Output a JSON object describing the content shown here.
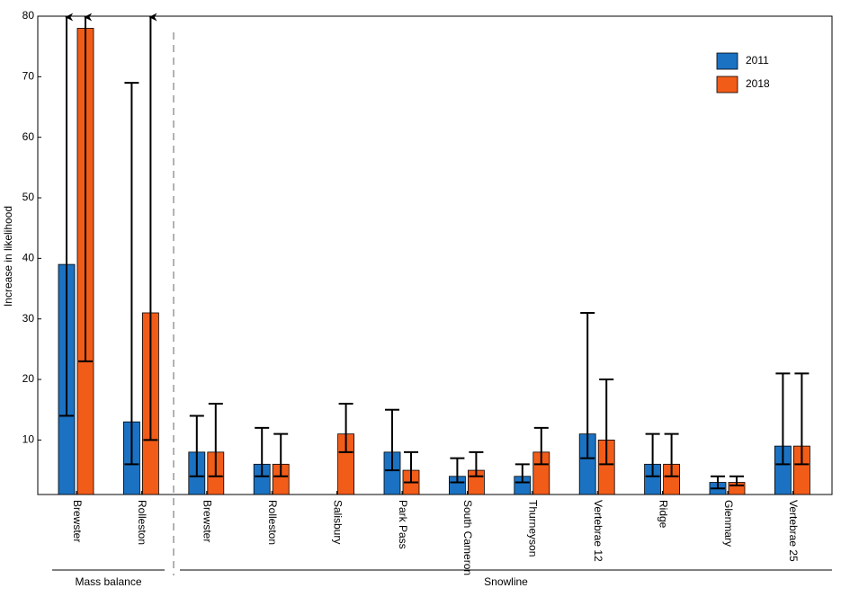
{
  "chart_data": {
    "type": "bar",
    "y_label": "Increase in likelihood",
    "sections": [
      {
        "name": "Mass balance",
        "categories": [
          "Brewster",
          "Rolleston"
        ]
      },
      {
        "name": "Snowline",
        "categories": [
          "Brewster",
          "Rolleston",
          "Salisbury",
          "Park Pass",
          "South Cameron",
          "Thurneyson",
          "Vertebrae 12",
          "Ridge",
          "Glenmary",
          "Vertebrae 25"
        ]
      }
    ],
    "series": [
      {
        "name": "2011",
        "color": "#1b72c2",
        "values": [
          39,
          13,
          8,
          6,
          null,
          8,
          4,
          4,
          11,
          6,
          3,
          9
        ],
        "lower": [
          14,
          6,
          4,
          4,
          null,
          5,
          3,
          3,
          7,
          4,
          2,
          6
        ],
        "upper": [
          null,
          69,
          14,
          12,
          null,
          15,
          7,
          6,
          31,
          11,
          4,
          21
        ]
      },
      {
        "name": "2018",
        "color": "#f25c19",
        "values": [
          78,
          31,
          8,
          6,
          11,
          5,
          5,
          8,
          10,
          6,
          3,
          9
        ],
        "lower": [
          23,
          10,
          4,
          4,
          8,
          3,
          4,
          6,
          6,
          4,
          2.5,
          6
        ],
        "upper": [
          null,
          null,
          16,
          11,
          16,
          8,
          8,
          12,
          20,
          11,
          4,
          21
        ]
      }
    ],
    "ylim": [
      1,
      80
    ],
    "yticks": [
      10,
      20,
      30,
      40,
      50,
      60,
      70,
      80
    ],
    "legend": "upper right"
  }
}
